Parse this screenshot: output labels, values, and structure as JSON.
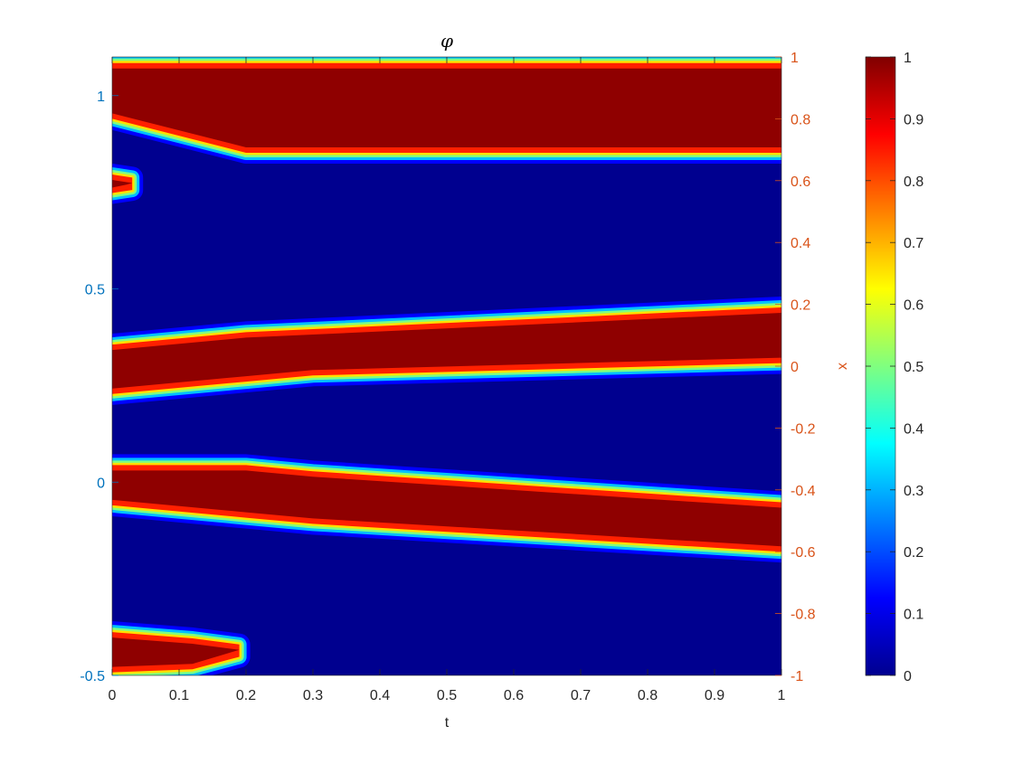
{
  "chart_data": {
    "type": "heatmap",
    "title": "φ",
    "xlabel": "t",
    "ylabel_right": "x",
    "xlim": [
      0,
      1
    ],
    "ylim_left": [
      -0.5,
      1.1
    ],
    "ylim_right": [
      -1,
      1
    ],
    "x_ticks": [
      "0",
      "0.1",
      "0.2",
      "0.3",
      "0.4",
      "0.5",
      "0.6",
      "0.7",
      "0.8",
      "0.9",
      "1"
    ],
    "y_ticks_left": [
      "-0.5",
      "0",
      "0.5",
      "1"
    ],
    "y_ticks_right": [
      "-1",
      "-0.8",
      "-0.6",
      "-0.4",
      "-0.2",
      "0",
      "0.2",
      "0.4",
      "0.6",
      "0.8",
      "1"
    ],
    "colorbar": {
      "colormap": "jet",
      "range": [
        0,
        1
      ],
      "ticks": [
        "0",
        "0.1",
        "0.2",
        "0.3",
        "0.4",
        "0.5",
        "0.6",
        "0.7",
        "0.8",
        "0.9",
        "1"
      ]
    },
    "bands": [
      {
        "t": [
          0,
          0.2,
          0.3,
          1
        ],
        "x_low": [
          0.8,
          0.69,
          0.69,
          0.69
        ],
        "x_high": [
          0.98,
          0.98,
          0.98,
          0.98
        ]
      },
      {
        "t": [
          0,
          0.2,
          0.3,
          1
        ],
        "x_low": [
          -0.09,
          -0.05,
          -0.03,
          0.01
        ],
        "x_high": [
          0.07,
          0.11,
          0.12,
          0.19
        ]
      },
      {
        "t": [
          0,
          0.2,
          0.3,
          1
        ],
        "x_low": [
          -0.45,
          -0.49,
          -0.51,
          -0.6
        ],
        "x_high": [
          -0.32,
          -0.32,
          -0.34,
          -0.44
        ]
      },
      {
        "t": [
          0,
          0.12,
          0.19
        ],
        "x_low": [
          -0.99,
          -0.98,
          -0.94
        ],
        "x_high": [
          -0.86,
          -0.88,
          -0.9
        ]
      },
      {
        "t": [
          0,
          0.03
        ],
        "x_low": [
          0.56,
          0.57
        ],
        "x_high": [
          0.62,
          0.61
        ]
      }
    ],
    "colors": {
      "left_axis": "#0072BD",
      "right_axis": "#D95319",
      "background": "#00008F"
    }
  }
}
